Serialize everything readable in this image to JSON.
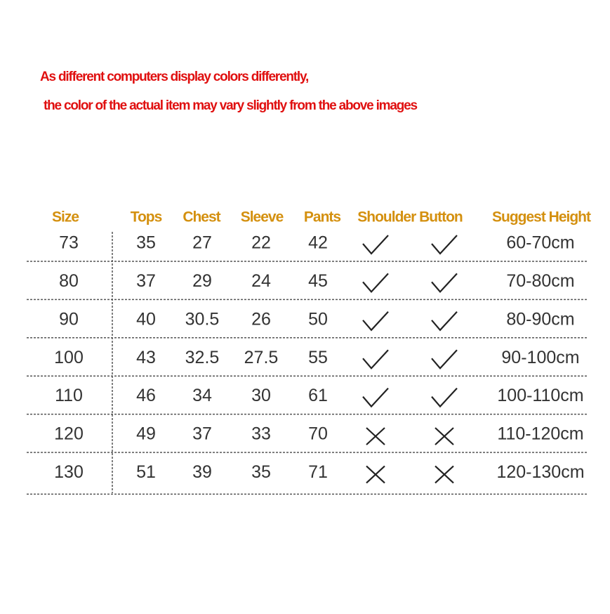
{
  "notice": [
    "As different computers display colors differently,",
    "the color of the actual item may vary slightly from the above images"
  ],
  "table": {
    "headers": [
      "Size",
      "Tops",
      "Chest",
      "Sleeve",
      "Pants",
      "Shoulder Button",
      "Suggest Height"
    ],
    "rows": [
      {
        "cells": [
          "73",
          "35",
          "27",
          "22",
          "42"
        ],
        "shoulder": true,
        "button": true,
        "height": "60-70cm"
      },
      {
        "cells": [
          "80",
          "37",
          "29",
          "24",
          "45"
        ],
        "shoulder": true,
        "button": true,
        "height": "70-80cm"
      },
      {
        "cells": [
          "90",
          "40",
          "30.5",
          "26",
          "50"
        ],
        "shoulder": true,
        "button": true,
        "height": "80-90cm"
      },
      {
        "cells": [
          "100",
          "43",
          "32.5",
          "27.5",
          "55"
        ],
        "shoulder": true,
        "button": true,
        "height": "90-100cm"
      },
      {
        "cells": [
          "110",
          "46",
          "34",
          "30",
          "61"
        ],
        "shoulder": true,
        "button": true,
        "height": "100-110cm"
      },
      {
        "cells": [
          "120",
          "49",
          "37",
          "33",
          "70"
        ],
        "shoulder": false,
        "button": false,
        "height": "110-120cm"
      },
      {
        "cells": [
          "130",
          "51",
          "39",
          "35",
          "71"
        ],
        "shoulder": false,
        "button": false,
        "height": "120-130cm"
      }
    ]
  }
}
